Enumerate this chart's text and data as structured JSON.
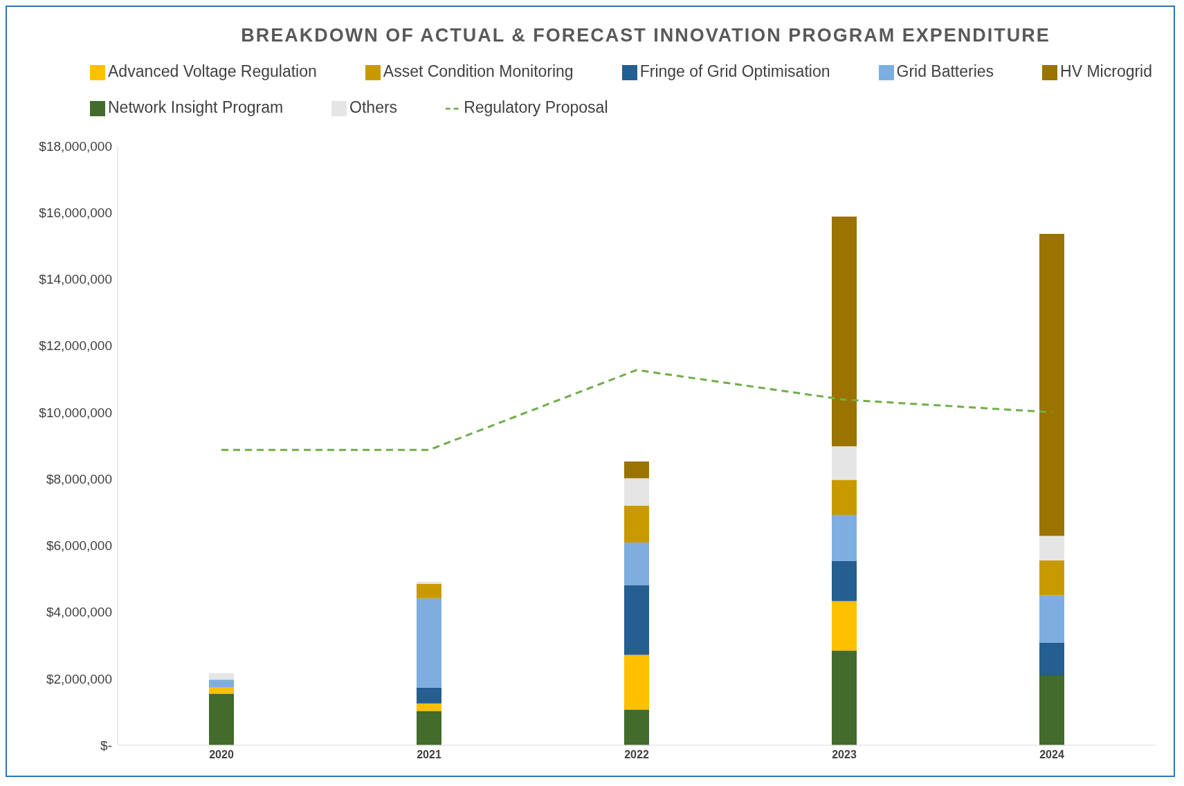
{
  "chart_data": {
    "type": "bar",
    "title": "BREAKDOWN OF ACTUAL & FORECAST INNOVATION PROGRAM EXPENDITURE",
    "categories": [
      "2020",
      "2021",
      "2022",
      "2023",
      "2024"
    ],
    "stacked": true,
    "grid": false,
    "legend": "top",
    "ylim": [
      0,
      18000000
    ],
    "yticks": [
      {
        "value": 0,
        "label": "$-"
      },
      {
        "value": 2000000,
        "label": "$2,000,000"
      },
      {
        "value": 4000000,
        "label": "$4,000,000"
      },
      {
        "value": 6000000,
        "label": "$6,000,000"
      },
      {
        "value": 8000000,
        "label": "$8,000,000"
      },
      {
        "value": 10000000,
        "label": "$10,000,000"
      },
      {
        "value": 12000000,
        "label": "$12,000,000"
      },
      {
        "value": 14000000,
        "label": "$14,000,000"
      },
      {
        "value": 16000000,
        "label": "$16,000,000"
      },
      {
        "value": 18000000,
        "label": "$18,000,000"
      }
    ],
    "series": [
      {
        "name": "Network Insight Program",
        "color": "#426b2c",
        "values": [
          1550000,
          1030000,
          1070000,
          2840000,
          2100000
        ]
      },
      {
        "name": "Advanced Voltage Regulation",
        "color": "#ffc000",
        "values": [
          180000,
          220000,
          1640000,
          1490000,
          0
        ]
      },
      {
        "name": "Fringe of Grid Optimisation",
        "color": "#255e91",
        "values": [
          0,
          480000,
          2100000,
          1200000,
          980000
        ]
      },
      {
        "name": "Grid Batteries",
        "color": "#7eaedf",
        "values": [
          240000,
          2680000,
          1280000,
          1390000,
          1420000
        ]
      },
      {
        "name": "Asset Condition Monitoring",
        "color": "#c99a00",
        "values": [
          0,
          440000,
          1100000,
          1050000,
          1050000
        ]
      },
      {
        "name": "Others",
        "color": "#e5e5e5",
        "values": [
          190000,
          60000,
          830000,
          1010000,
          740000
        ]
      },
      {
        "name": "HV Microgrid",
        "color": "#9a7300",
        "values": [
          0,
          0,
          500000,
          6900000,
          9070000
        ]
      },
      {
        "name": "Regulatory Proposal",
        "type": "line",
        "color": "#70ad47",
        "line_style": "dashed",
        "marker": "none",
        "values": [
          8870000,
          8870000,
          11270000,
          10380000,
          10000000
        ]
      }
    ]
  }
}
